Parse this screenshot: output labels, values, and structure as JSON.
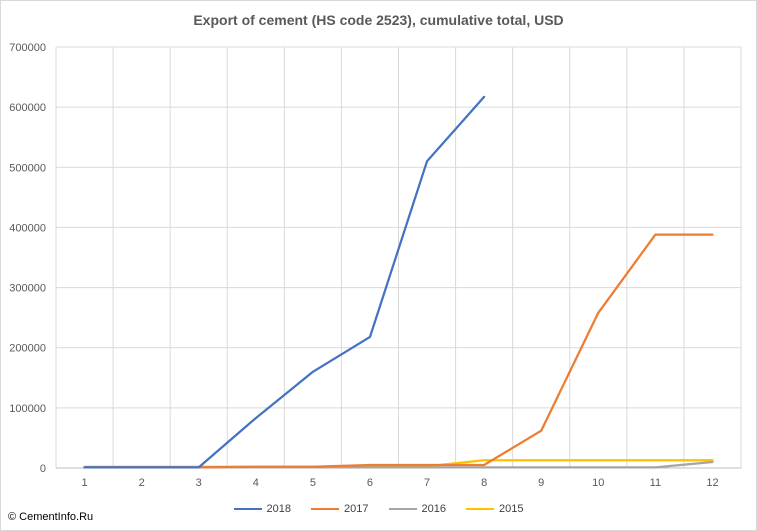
{
  "chart_data": {
    "type": "line",
    "title": "Export of cement (HS code 2523), cumulative total, USD",
    "xlabel": "",
    "ylabel": "",
    "x": [
      1,
      2,
      3,
      4,
      5,
      6,
      7,
      8,
      9,
      10,
      11,
      12
    ],
    "ylim": [
      0,
      700000
    ],
    "y_ticks": [
      0,
      100000,
      200000,
      300000,
      400000,
      500000,
      600000,
      700000
    ],
    "grid": true,
    "legend_position": "bottom",
    "series": [
      {
        "name": "2018",
        "color": "#4472c4",
        "values": [
          1000,
          1000,
          1000,
          83000,
          160000,
          218000,
          510000,
          617000,
          null,
          null,
          null,
          null
        ]
      },
      {
        "name": "2017",
        "color": "#ed7d31",
        "values": [
          1000,
          1000,
          1000,
          2000,
          2000,
          5000,
          5000,
          5000,
          62000,
          258000,
          388000,
          388000
        ]
      },
      {
        "name": "2016",
        "color": "#a5a5a5",
        "values": [
          1000,
          1000,
          1000,
          1000,
          1000,
          1000,
          1000,
          1000,
          1000,
          1000,
          1000,
          10000
        ]
      },
      {
        "name": "2015",
        "color": "#ffc000",
        "values": [
          2000,
          2000,
          2000,
          2000,
          2000,
          2000,
          3000,
          13000,
          13000,
          13000,
          13000,
          13000
        ]
      }
    ]
  },
  "watermark": "© CementInfo.Ru"
}
